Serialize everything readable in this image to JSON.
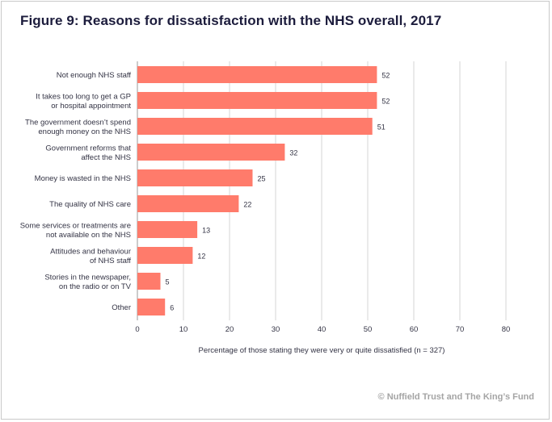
{
  "chart_data": {
    "type": "bar",
    "orientation": "horizontal",
    "title": "Figure 9: Reasons for dissatisfaction with the NHS overall, 2017",
    "xlabel": "Percentage of those stating they were very or quite dissatisfied (n = 327)",
    "ylabel": "",
    "xlim": [
      0,
      80
    ],
    "xticks": [
      0,
      10,
      20,
      30,
      40,
      50,
      60,
      70,
      80
    ],
    "grid": true,
    "categories": [
      [
        "Not enough NHS staff"
      ],
      [
        "It takes too long to get a GP",
        "or hospital appointment"
      ],
      [
        "The government doesn’t spend",
        "enough money on the NHS"
      ],
      [
        "Government reforms that",
        "affect the NHS"
      ],
      [
        "Money is wasted in the NHS"
      ],
      [
        "The quality of NHS care"
      ],
      [
        "Some services or treatments are",
        "not available on the NHS"
      ],
      [
        "Attitudes and behaviour",
        "of NHS staff"
      ],
      [
        "Stories in the newspaper,",
        "on the radio or on TV"
      ],
      [
        "Other"
      ]
    ],
    "values": [
      52,
      52,
      51,
      32,
      25,
      22,
      13,
      12,
      5,
      6
    ],
    "colors": {
      "bar": "#ff7b6b",
      "grid": "#d4d4d4",
      "text": "#333344"
    }
  },
  "footer": {
    "copyright": "© Nuffield Trust and The King’s Fund"
  }
}
